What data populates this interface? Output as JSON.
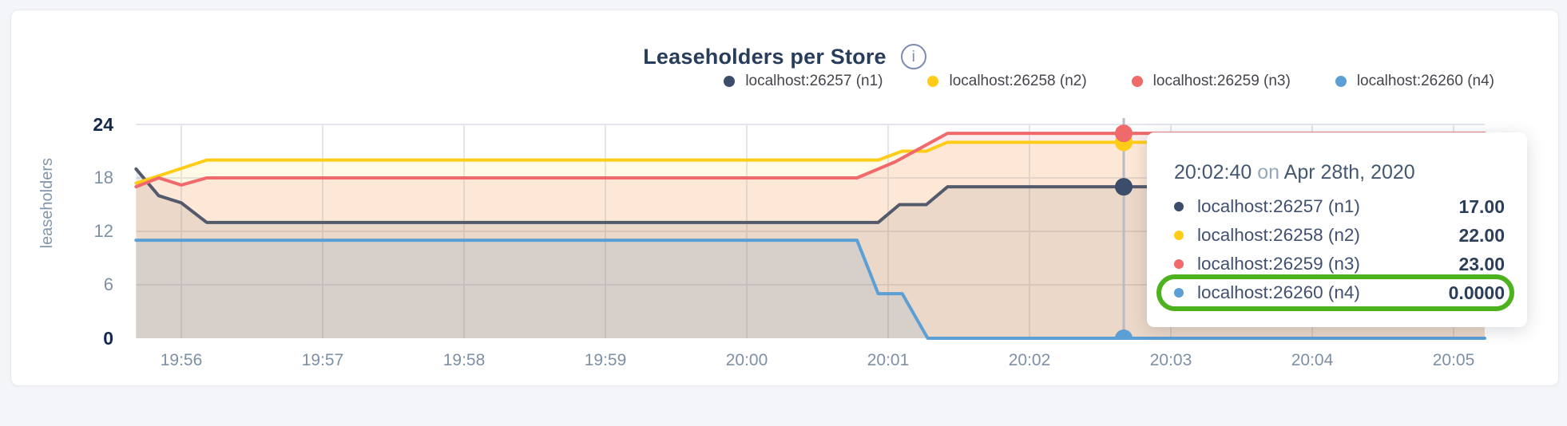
{
  "card": {
    "title": "Leaseholders per Store",
    "info_icon_glyph": "i"
  },
  "legend": {
    "items": [
      {
        "id": "n1",
        "label": "localhost:26257 (n1)",
        "color": "#3c4d6b"
      },
      {
        "id": "n2",
        "label": "localhost:26258 (n2)",
        "color": "#ffcd17"
      },
      {
        "id": "n3",
        "label": "localhost:26259 (n3)",
        "color": "#f0696b"
      },
      {
        "id": "n4",
        "label": "localhost:26260 (n4)",
        "color": "#5c9fd4"
      }
    ]
  },
  "chart_data": {
    "type": "area",
    "title": "Leaseholders per Store",
    "ylabel": "leaseholders",
    "ylim": [
      0,
      24
    ],
    "grid": true,
    "legend_position": "top-right",
    "y_ticks": [
      {
        "value": 24,
        "emphasis": true
      },
      {
        "value": 18,
        "emphasis": false
      },
      {
        "value": 12,
        "emphasis": false
      },
      {
        "value": 6,
        "emphasis": false
      },
      {
        "value": 0,
        "emphasis": true
      }
    ],
    "x_ticks": [
      {
        "label": "19:56",
        "t": 1
      },
      {
        "label": "19:57",
        "t": 2
      },
      {
        "label": "19:58",
        "t": 3
      },
      {
        "label": "19:59",
        "t": 4
      },
      {
        "label": "20:00",
        "t": 5
      },
      {
        "label": "20:01",
        "t": 6
      },
      {
        "label": "20:02",
        "t": 7
      },
      {
        "label": "20:03",
        "t": 8
      },
      {
        "label": "20:04",
        "t": 9
      },
      {
        "label": "20:05",
        "t": 10
      }
    ],
    "x_range_minutes_after_1955": [
      0.68,
      10.22
    ],
    "series": [
      {
        "name": "localhost:26257 (n1)",
        "node": "n1",
        "color": "#535a6b",
        "dot_color": "#3c4d6b",
        "fill_alpha": 0.13,
        "points": [
          [
            0.68,
            19
          ],
          [
            0.84,
            16
          ],
          [
            1.0,
            15.2
          ],
          [
            1.18,
            13
          ],
          [
            5.93,
            13
          ],
          [
            6.08,
            15
          ],
          [
            6.27,
            15
          ],
          [
            6.42,
            17
          ],
          [
            10.22,
            17
          ]
        ]
      },
      {
        "name": "localhost:26258 (n2)",
        "node": "n2",
        "color": "#ffcd17",
        "dot_color": "#ffcd17",
        "fill_alpha": 0.11,
        "points": [
          [
            0.68,
            17.4
          ],
          [
            1.18,
            20
          ],
          [
            5.93,
            20
          ],
          [
            6.1,
            21
          ],
          [
            6.27,
            21
          ],
          [
            6.42,
            22
          ],
          [
            10.22,
            22
          ]
        ]
      },
      {
        "name": "localhost:26259 (n3)",
        "node": "n3",
        "color": "#f0696b",
        "dot_color": "#f0696b",
        "fill_alpha": 0.12,
        "points": [
          [
            0.68,
            17
          ],
          [
            0.84,
            18
          ],
          [
            1.0,
            17.2
          ],
          [
            1.18,
            18
          ],
          [
            5.78,
            18
          ],
          [
            6.05,
            19.8
          ],
          [
            6.42,
            23
          ],
          [
            10.22,
            23
          ]
        ]
      },
      {
        "name": "localhost:26260 (n4)",
        "node": "n4",
        "color": "#5c9fd4",
        "dot_color": "#5c9fd4",
        "fill_alpha": 0.15,
        "points": [
          [
            0.68,
            11
          ],
          [
            5.78,
            11
          ],
          [
            5.93,
            5
          ],
          [
            6.1,
            5
          ],
          [
            6.28,
            0
          ],
          [
            10.22,
            0
          ]
        ]
      }
    ],
    "hover": {
      "t": 7.6667,
      "time_label": "20:02:40",
      "values": [
        17,
        22,
        23,
        0
      ]
    },
    "colors": {
      "gridline": "#e3e6ec",
      "hover_line": "#b7bdc5"
    }
  },
  "tooltip": {
    "time": "20:02:40",
    "connector": "on",
    "date": "Apr 28th, 2020",
    "rows": [
      {
        "label": "localhost:26257 (n1)",
        "value": "17.00",
        "color": "#3c4d6b",
        "highlighted": false
      },
      {
        "label": "localhost:26258 (n2)",
        "value": "22.00",
        "color": "#ffcd17",
        "highlighted": false
      },
      {
        "label": "localhost:26259 (n3)",
        "value": "23.00",
        "color": "#f0696b",
        "highlighted": false
      },
      {
        "label": "localhost:26260 (n4)",
        "value": "0.0000",
        "color": "#5c9fd4",
        "highlighted": true
      }
    ],
    "highlight_color": "#4cb31e"
  }
}
